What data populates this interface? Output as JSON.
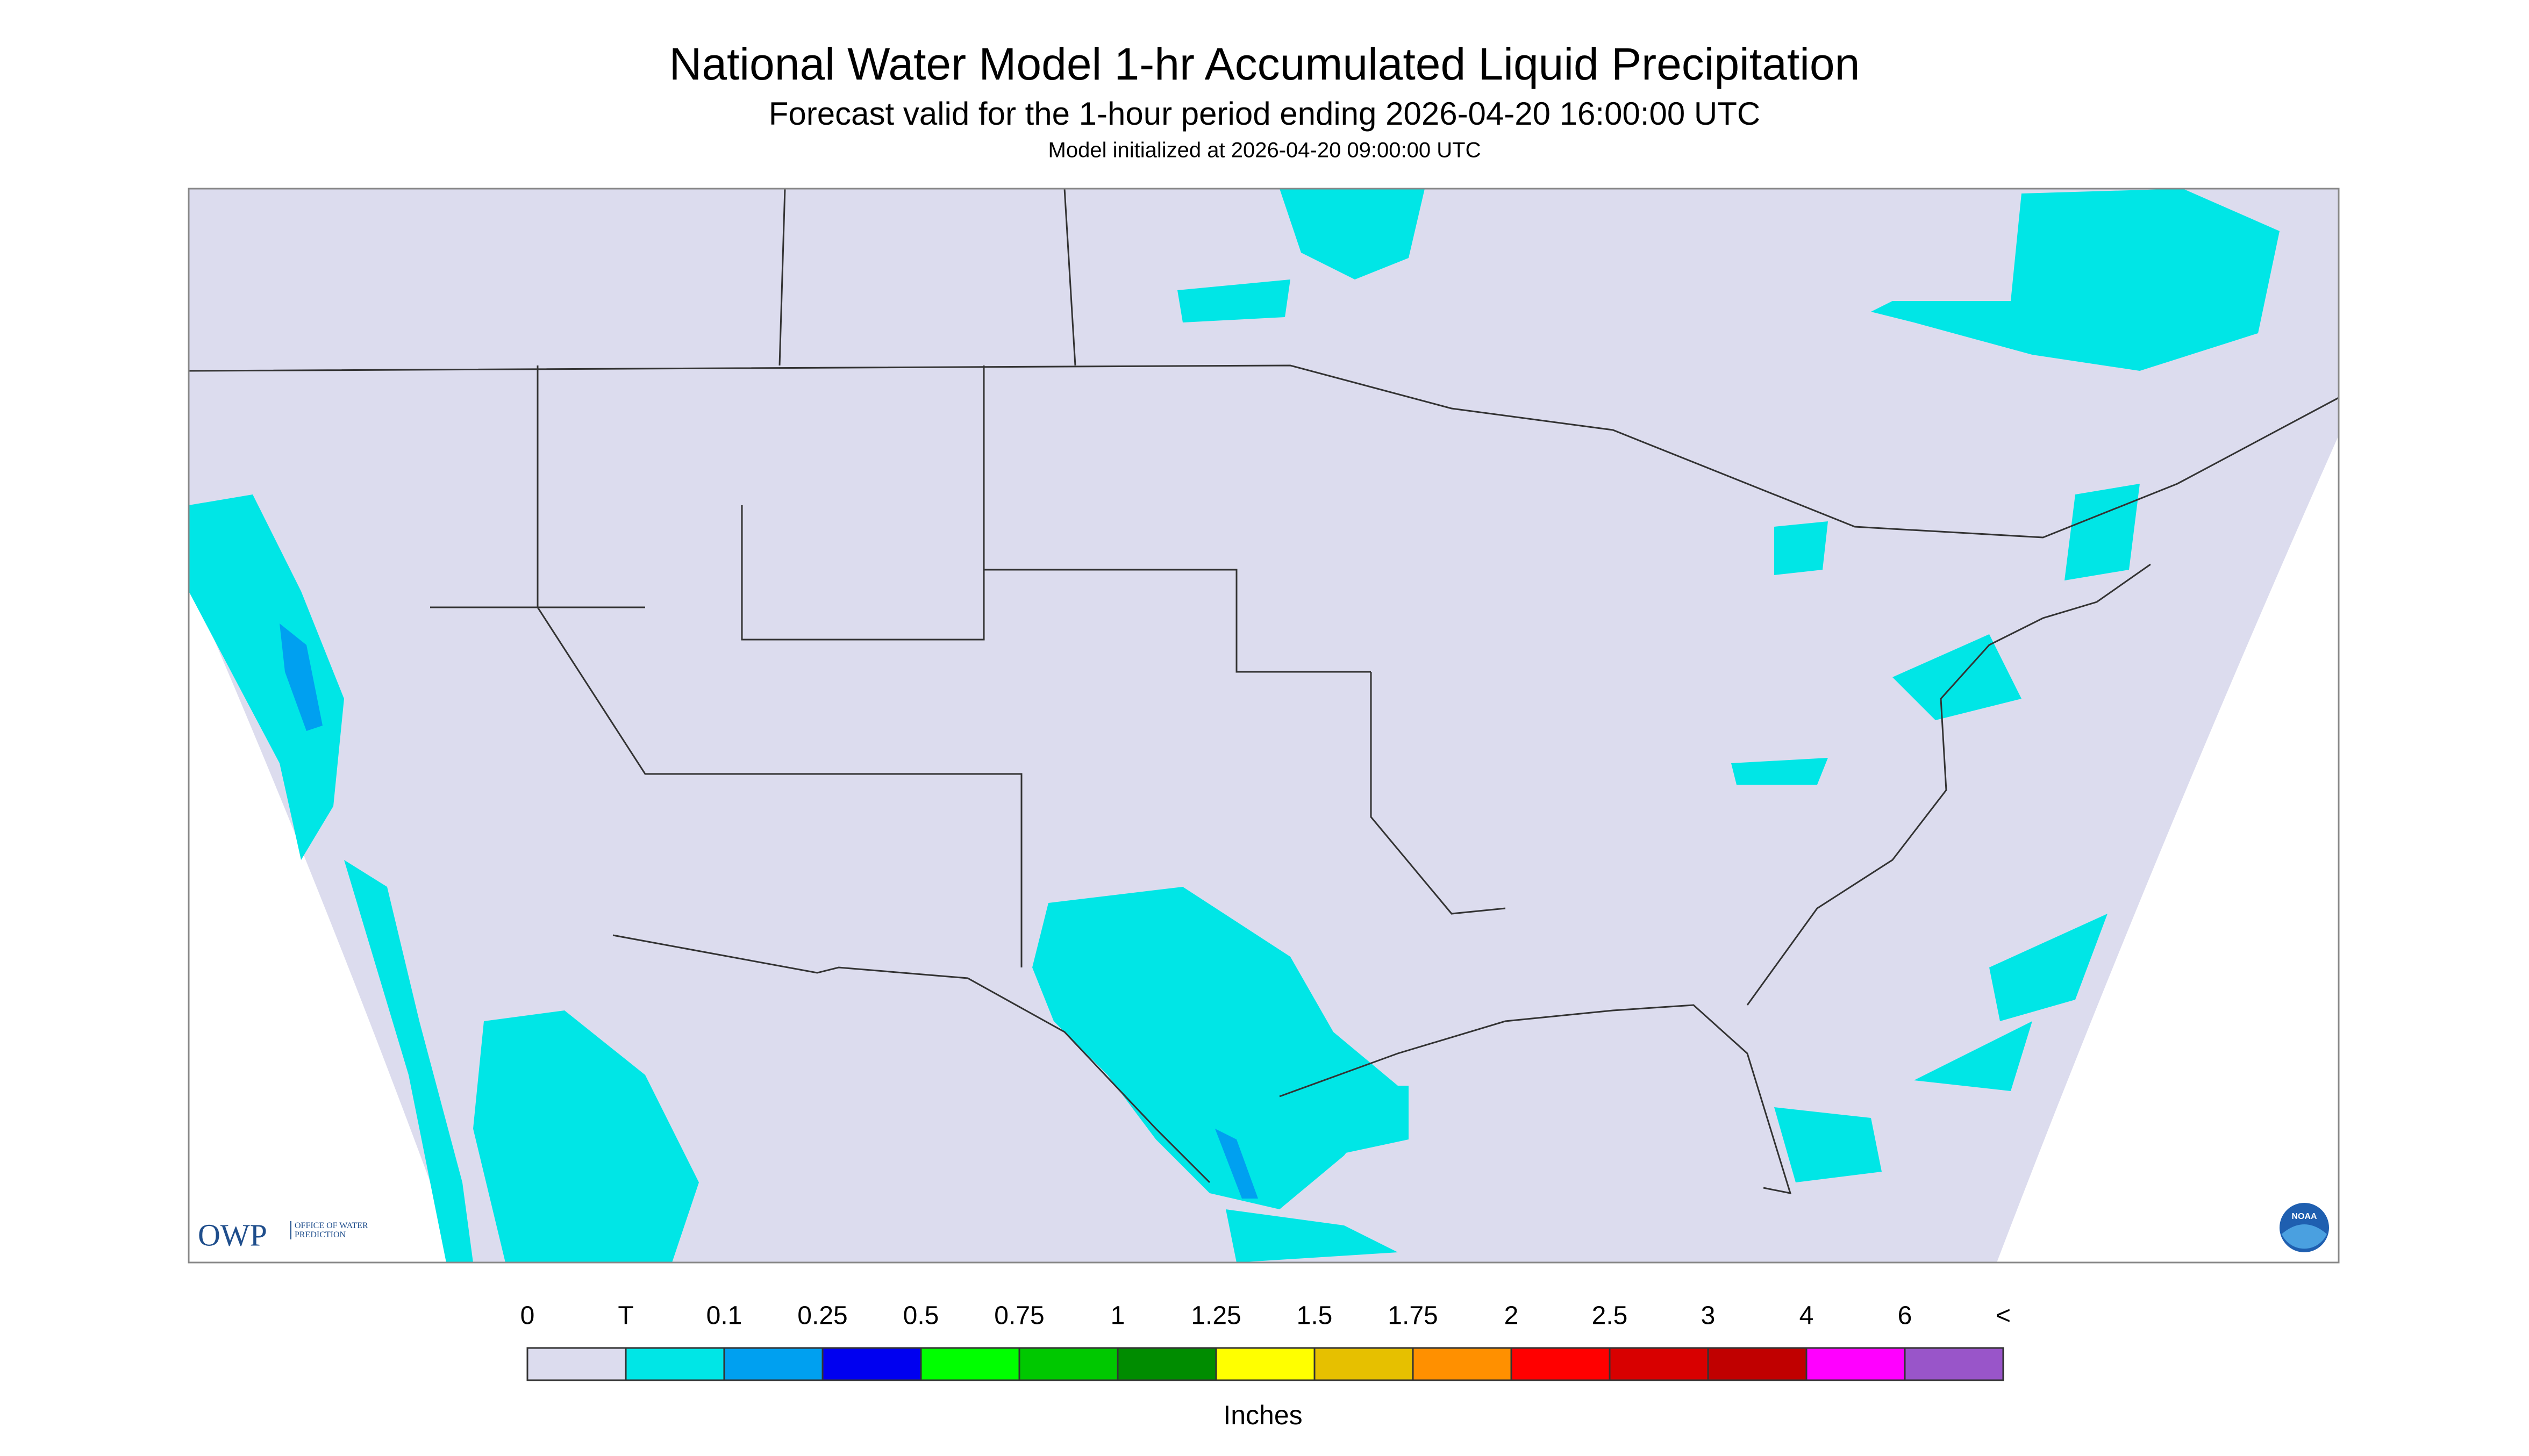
{
  "header": {
    "title": "National Water Model 1-hr Accumulated Liquid Precipitation",
    "subtitle": "Forecast valid for the 1-hour period ending 2026-04-20 16:00:00 UTC",
    "init": "Model initialized at 2026-04-20 09:00:00 UTC"
  },
  "legend": {
    "labels": [
      "0",
      "T",
      "0.1",
      "0.25",
      "0.5",
      "0.75",
      "1",
      "1.25",
      "1.5",
      "1.75",
      "2",
      "2.5",
      "3",
      "4",
      "6",
      "<"
    ],
    "colors": [
      "#dcdcee",
      "#00e6e6",
      "#00a0f0",
      "#0000f0",
      "#00ff00",
      "#00c800",
      "#008c00",
      "#ffff00",
      "#e6c000",
      "#ff9000",
      "#ff0000",
      "#d80000",
      "#c00000",
      "#ff00ff",
      "#9955c9"
    ],
    "units": "Inches"
  },
  "logo": {
    "owp": "OWP",
    "owp_text": "OFFICE OF WATER PREDICTION",
    "noaa": "NOAA"
  }
}
